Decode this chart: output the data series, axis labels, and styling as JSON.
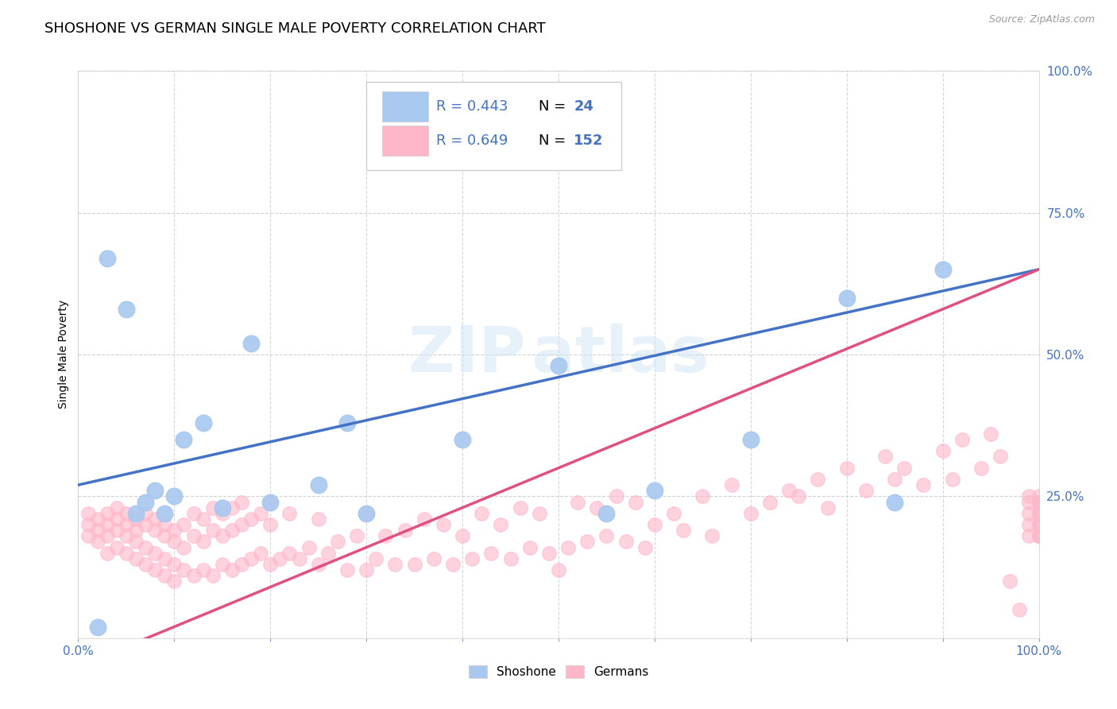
{
  "title": "SHOSHONE VS GERMAN SINGLE MALE POVERTY CORRELATION CHART",
  "source_text": "Source: ZipAtlas.com",
  "ylabel": "Single Male Poverty",
  "watermark": "ZIPAtlas",
  "xlim": [
    0.0,
    1.0
  ],
  "ylim": [
    0.0,
    1.0
  ],
  "xtick_show": [
    0.0,
    1.0
  ],
  "yticks_right": [
    0.0,
    0.25,
    0.5,
    0.75,
    1.0
  ],
  "shoshone": {
    "R": 0.443,
    "N": 24,
    "color": "#a8c8f0",
    "line_color": "#4472c4",
    "intercept": 0.27,
    "slope": 0.38,
    "x": [
      0.02,
      0.03,
      0.05,
      0.06,
      0.07,
      0.08,
      0.09,
      0.1,
      0.11,
      0.13,
      0.15,
      0.18,
      0.2,
      0.25,
      0.28,
      0.3,
      0.4,
      0.5,
      0.55,
      0.6,
      0.7,
      0.8,
      0.85,
      0.9
    ],
    "y": [
      0.02,
      0.67,
      0.58,
      0.22,
      0.24,
      0.26,
      0.22,
      0.25,
      0.35,
      0.38,
      0.23,
      0.52,
      0.24,
      0.27,
      0.38,
      0.22,
      0.35,
      0.48,
      0.22,
      0.26,
      0.35,
      0.6,
      0.24,
      0.65
    ]
  },
  "germans": {
    "R": 0.649,
    "N": 152,
    "color": "#ffb6c8",
    "line_color": "#e05080",
    "intercept": -0.05,
    "slope": 0.7,
    "x": [
      0.01,
      0.01,
      0.01,
      0.02,
      0.02,
      0.02,
      0.03,
      0.03,
      0.03,
      0.03,
      0.04,
      0.04,
      0.04,
      0.04,
      0.05,
      0.05,
      0.05,
      0.05,
      0.06,
      0.06,
      0.06,
      0.06,
      0.07,
      0.07,
      0.07,
      0.07,
      0.08,
      0.08,
      0.08,
      0.08,
      0.09,
      0.09,
      0.09,
      0.09,
      0.1,
      0.1,
      0.1,
      0.1,
      0.11,
      0.11,
      0.11,
      0.12,
      0.12,
      0.12,
      0.13,
      0.13,
      0.13,
      0.14,
      0.14,
      0.14,
      0.15,
      0.15,
      0.15,
      0.16,
      0.16,
      0.16,
      0.17,
      0.17,
      0.17,
      0.18,
      0.18,
      0.19,
      0.19,
      0.2,
      0.2,
      0.2,
      0.21,
      0.22,
      0.22,
      0.23,
      0.24,
      0.25,
      0.25,
      0.26,
      0.27,
      0.28,
      0.29,
      0.3,
      0.3,
      0.31,
      0.32,
      0.33,
      0.34,
      0.35,
      0.36,
      0.37,
      0.38,
      0.39,
      0.4,
      0.41,
      0.42,
      0.43,
      0.44,
      0.45,
      0.46,
      0.47,
      0.48,
      0.49,
      0.5,
      0.51,
      0.52,
      0.53,
      0.54,
      0.55,
      0.56,
      0.57,
      0.58,
      0.59,
      0.6,
      0.62,
      0.63,
      0.65,
      0.66,
      0.68,
      0.7,
      0.72,
      0.74,
      0.75,
      0.77,
      0.78,
      0.8,
      0.82,
      0.84,
      0.85,
      0.86,
      0.88,
      0.9,
      0.91,
      0.92,
      0.94,
      0.95,
      0.96,
      0.97,
      0.98,
      0.99,
      0.99,
      0.99,
      0.99,
      0.99,
      1.0,
      1.0,
      1.0,
      1.0,
      1.0,
      1.0,
      1.0,
      1.0,
      1.0,
      1.0,
      1.0,
      1.0,
      1.0
    ],
    "y": [
      0.2,
      0.22,
      0.18,
      0.21,
      0.19,
      0.17,
      0.2,
      0.22,
      0.18,
      0.15,
      0.19,
      0.21,
      0.16,
      0.23,
      0.18,
      0.2,
      0.15,
      0.22,
      0.17,
      0.19,
      0.14,
      0.21,
      0.16,
      0.2,
      0.13,
      0.22,
      0.15,
      0.19,
      0.12,
      0.21,
      0.14,
      0.18,
      0.11,
      0.2,
      0.13,
      0.17,
      0.1,
      0.19,
      0.12,
      0.16,
      0.2,
      0.11,
      0.18,
      0.22,
      0.12,
      0.17,
      0.21,
      0.11,
      0.19,
      0.23,
      0.13,
      0.18,
      0.22,
      0.12,
      0.19,
      0.23,
      0.13,
      0.2,
      0.24,
      0.14,
      0.21,
      0.15,
      0.22,
      0.13,
      0.2,
      0.24,
      0.14,
      0.15,
      0.22,
      0.14,
      0.16,
      0.13,
      0.21,
      0.15,
      0.17,
      0.12,
      0.18,
      0.12,
      0.22,
      0.14,
      0.18,
      0.13,
      0.19,
      0.13,
      0.21,
      0.14,
      0.2,
      0.13,
      0.18,
      0.14,
      0.22,
      0.15,
      0.2,
      0.14,
      0.23,
      0.16,
      0.22,
      0.15,
      0.12,
      0.16,
      0.24,
      0.17,
      0.23,
      0.18,
      0.25,
      0.17,
      0.24,
      0.16,
      0.2,
      0.22,
      0.19,
      0.25,
      0.18,
      0.27,
      0.22,
      0.24,
      0.26,
      0.25,
      0.28,
      0.23,
      0.3,
      0.26,
      0.32,
      0.28,
      0.3,
      0.27,
      0.33,
      0.28,
      0.35,
      0.3,
      0.36,
      0.32,
      0.1,
      0.05,
      0.2,
      0.22,
      0.24,
      0.25,
      0.18,
      0.22,
      0.24,
      0.25,
      0.18,
      0.2,
      0.22,
      0.24,
      0.18,
      0.2,
      0.22,
      0.24,
      0.2,
      0.18
    ]
  },
  "legend": {
    "shoshone_label": "Shoshone",
    "german_label": "Germans"
  },
  "background_color": "#ffffff",
  "grid_color": "#cccccc",
  "title_fontsize": 13,
  "R_color": "#4472c4"
}
